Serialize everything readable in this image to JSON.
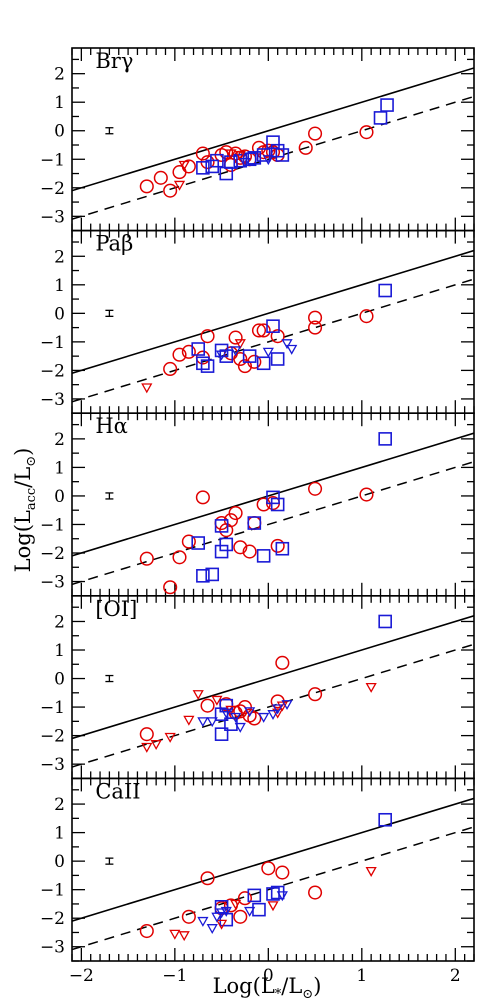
{
  "chart_data": {
    "type": "scatter",
    "x_axis": {
      "label_main": "Log(L",
      "label_sub": "*",
      "label_mid": "/L",
      "label_sub2": "⊙",
      "label_end": ")",
      "range": [
        -2.1,
        2.2
      ],
      "ticks": [
        -2,
        -1,
        0,
        1,
        2
      ],
      "tick_labels": [
        "−2",
        "−1",
        "0",
        "1",
        "2"
      ]
    },
    "y_axis": {
      "label_main": "Log(L",
      "label_sub": "acc",
      "label_mid": "/L",
      "label_sub2": "⊙",
      "label_end": ")",
      "range": [
        -3.5,
        2.9
      ],
      "ticks": [
        -3,
        -2,
        -1,
        0,
        1,
        2
      ],
      "tick_labels": [
        "−3",
        "−2",
        "−1",
        "0",
        "1",
        "2"
      ]
    },
    "relations": {
      "solid": {
        "slope": 1.0,
        "intercept": 0.0
      },
      "dashed": {
        "slope": 1.0,
        "intercept": -1.0
      }
    },
    "panels": [
      {
        "title": "Brγ",
        "errorbar": {
          "x": -1.7,
          "y": 0.0,
          "err": 0.1
        },
        "circles": [
          [
            -1.3,
            -1.95
          ],
          [
            -1.15,
            -1.65
          ],
          [
            -1.05,
            -2.1
          ],
          [
            -0.95,
            -1.45
          ],
          [
            -0.85,
            -1.25
          ],
          [
            -0.7,
            -0.8
          ],
          [
            -0.65,
            -1.1
          ],
          [
            -0.5,
            -0.85
          ],
          [
            -0.45,
            -0.75
          ],
          [
            -0.4,
            -1.2
          ],
          [
            -0.35,
            -0.8
          ],
          [
            -0.3,
            -0.95
          ],
          [
            -0.25,
            -0.9
          ],
          [
            -0.2,
            -1.0
          ],
          [
            -0.1,
            -0.6
          ],
          [
            -0.05,
            -0.75
          ],
          [
            0.0,
            -0.7
          ],
          [
            0.05,
            -0.75
          ],
          [
            0.1,
            -0.85
          ],
          [
            0.4,
            -0.6
          ],
          [
            0.5,
            -0.1
          ],
          [
            1.05,
            -0.05
          ]
        ],
        "squares": [
          [
            -0.7,
            -1.3
          ],
          [
            -0.6,
            -1.25
          ],
          [
            -0.55,
            -1.05
          ],
          [
            -0.45,
            -1.5
          ],
          [
            -0.4,
            -1.1
          ],
          [
            -0.3,
            -1.05
          ],
          [
            -0.2,
            -1.0
          ],
          [
            -0.15,
            -0.95
          ],
          [
            -0.05,
            -0.85
          ],
          [
            0.05,
            -0.4
          ],
          [
            0.1,
            -0.7
          ],
          [
            0.15,
            -0.85
          ],
          [
            1.2,
            0.45
          ],
          [
            1.27,
            0.9
          ]
        ],
        "triangles_red": [
          [
            -0.95,
            -1.9
          ],
          [
            -0.9,
            -1.2
          ],
          [
            -0.4,
            -0.8
          ],
          [
            -0.3,
            -0.85
          ]
        ],
        "triangles_blue": [
          [
            -0.25,
            -1.1
          ],
          [
            0.0,
            -1.0
          ]
        ]
      },
      {
        "title": "Paβ",
        "errorbar": {
          "x": -1.7,
          "y": 0.0,
          "err": 0.1
        },
        "circles": [
          [
            -1.05,
            -1.95
          ],
          [
            -0.95,
            -1.45
          ],
          [
            -0.85,
            -1.35
          ],
          [
            -0.7,
            -1.55
          ],
          [
            -0.65,
            -0.8
          ],
          [
            -0.4,
            -1.4
          ],
          [
            -0.35,
            -0.85
          ],
          [
            -0.3,
            -1.6
          ],
          [
            -0.25,
            -1.85
          ],
          [
            -0.15,
            -1.7
          ],
          [
            -0.1,
            -0.6
          ],
          [
            -0.05,
            -0.6
          ],
          [
            0.1,
            -0.8
          ],
          [
            0.5,
            -0.5
          ],
          [
            0.5,
            -0.15
          ],
          [
            1.05,
            -0.1
          ]
        ],
        "squares": [
          [
            -0.75,
            -1.25
          ],
          [
            -0.7,
            -1.75
          ],
          [
            -0.65,
            -1.85
          ],
          [
            -0.5,
            -1.3
          ],
          [
            -0.45,
            -1.5
          ],
          [
            -0.2,
            -1.5
          ],
          [
            -0.05,
            -1.75
          ],
          [
            0.05,
            -0.45
          ],
          [
            0.1,
            -1.6
          ],
          [
            1.25,
            0.8
          ]
        ],
        "triangles_red": [
          [
            -1.3,
            -2.6
          ],
          [
            -0.3,
            -1.05
          ]
        ],
        "triangles_blue": [
          [
            -0.5,
            -1.45
          ],
          [
            -0.35,
            -1.3
          ],
          [
            0.0,
            -1.35
          ],
          [
            0.2,
            -1.05
          ],
          [
            0.25,
            -1.25
          ]
        ]
      },
      {
        "title": "Hα",
        "errorbar": {
          "x": -1.7,
          "y": 0.0,
          "err": 0.1
        },
        "circles": [
          [
            -1.3,
            -2.2
          ],
          [
            -1.05,
            -3.2
          ],
          [
            -0.95,
            -2.15
          ],
          [
            -0.85,
            -1.6
          ],
          [
            -0.7,
            -0.05
          ],
          [
            -0.5,
            -0.95
          ],
          [
            -0.45,
            -1.2
          ],
          [
            -0.4,
            -0.85
          ],
          [
            -0.35,
            -0.6
          ],
          [
            -0.3,
            -1.8
          ],
          [
            -0.2,
            -1.95
          ],
          [
            -0.15,
            -0.95
          ],
          [
            -0.05,
            -0.3
          ],
          [
            0.05,
            -0.25
          ],
          [
            0.1,
            -1.75
          ],
          [
            0.5,
            0.25
          ],
          [
            1.05,
            0.05
          ]
        ],
        "squares": [
          [
            -0.75,
            -1.65
          ],
          [
            -0.7,
            -2.8
          ],
          [
            -0.6,
            -2.75
          ],
          [
            -0.5,
            -1.95
          ],
          [
            -0.5,
            -1.05
          ],
          [
            -0.45,
            -1.7
          ],
          [
            -0.15,
            -0.95
          ],
          [
            -0.05,
            -2.1
          ],
          [
            0.05,
            -0.05
          ],
          [
            0.1,
            -0.3
          ],
          [
            0.15,
            -1.85
          ],
          [
            1.25,
            2.0
          ]
        ],
        "triangles_red": [],
        "triangles_blue": []
      },
      {
        "title": "[OI]",
        "errorbar": {
          "x": -1.7,
          "y": 0.0,
          "err": 0.1
        },
        "circles": [
          [
            -1.3,
            -1.95
          ],
          [
            -0.65,
            -0.95
          ],
          [
            -0.45,
            -0.9
          ],
          [
            -0.35,
            -1.2
          ],
          [
            -0.3,
            -1.15
          ],
          [
            -0.25,
            -1.0
          ],
          [
            -0.2,
            -1.3
          ],
          [
            -0.15,
            -1.4
          ],
          [
            0.1,
            -0.8
          ],
          [
            0.15,
            0.55
          ],
          [
            0.5,
            -0.55
          ]
        ],
        "squares": [
          [
            -0.5,
            -1.95
          ],
          [
            -0.5,
            -1.25
          ],
          [
            -0.45,
            -0.95
          ],
          [
            -0.4,
            -1.6
          ],
          [
            1.25,
            2.0
          ]
        ],
        "triangles_red": [
          [
            -1.3,
            -2.4
          ],
          [
            -1.2,
            -2.3
          ],
          [
            -1.05,
            -2.05
          ],
          [
            -0.85,
            -1.45
          ],
          [
            -0.75,
            -0.55
          ],
          [
            -0.55,
            -0.75
          ],
          [
            -0.4,
            -1.1
          ],
          [
            0.1,
            -1.2
          ],
          [
            0.15,
            -0.95
          ],
          [
            1.1,
            -0.3
          ]
        ],
        "triangles_blue": [
          [
            -0.7,
            -1.5
          ],
          [
            -0.6,
            -1.5
          ],
          [
            -0.45,
            -1.2
          ],
          [
            -0.35,
            -1.35
          ],
          [
            -0.3,
            -1.7
          ],
          [
            -0.2,
            -1.15
          ],
          [
            -0.05,
            -1.35
          ],
          [
            0.05,
            -1.25
          ],
          [
            0.1,
            -1.05
          ],
          [
            0.2,
            -0.9
          ]
        ]
      },
      {
        "title": "CaII",
        "errorbar": {
          "x": -1.7,
          "y": 0.0,
          "err": 0.1
        },
        "circles": [
          [
            -1.3,
            -2.45
          ],
          [
            -0.85,
            -1.95
          ],
          [
            -0.65,
            -0.6
          ],
          [
            -0.5,
            -1.65
          ],
          [
            -0.4,
            -1.55
          ],
          [
            -0.3,
            -1.95
          ],
          [
            -0.25,
            -1.3
          ],
          [
            0.0,
            -0.25
          ],
          [
            0.15,
            -0.4
          ],
          [
            0.5,
            -1.1
          ]
        ],
        "squares": [
          [
            -0.5,
            -1.6
          ],
          [
            -0.45,
            -2.05
          ],
          [
            -0.15,
            -1.2
          ],
          [
            -0.1,
            -1.7
          ],
          [
            0.05,
            -1.15
          ],
          [
            0.1,
            -1.1
          ],
          [
            1.25,
            1.45
          ]
        ],
        "triangles_red": [
          [
            -1.0,
            -2.55
          ],
          [
            -0.9,
            -2.6
          ],
          [
            -0.5,
            -2.2
          ],
          [
            -0.35,
            -1.5
          ],
          [
            0.05,
            -1.55
          ],
          [
            1.1,
            -0.35
          ]
        ],
        "triangles_blue": [
          [
            -0.7,
            -2.1
          ],
          [
            -0.6,
            -2.35
          ],
          [
            -0.55,
            -1.95
          ],
          [
            -0.5,
            -1.8
          ],
          [
            -0.45,
            -1.75
          ],
          [
            -0.2,
            -1.75
          ],
          [
            0.15,
            -1.2
          ]
        ]
      }
    ],
    "colors": {
      "circle": "#e00000",
      "square": "#1a1ad6",
      "triangle_red": "#e00000",
      "triangle_blue": "#1a1ad6"
    }
  }
}
